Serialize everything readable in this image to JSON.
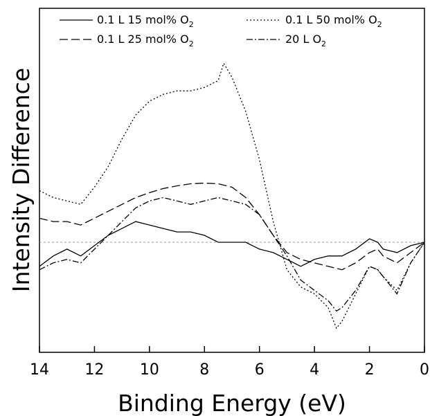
{
  "chart_data": {
    "type": "line",
    "xlabel": "Binding Energy (eV)",
    "ylabel": "Intensity Difference",
    "xlim": [
      14,
      0
    ],
    "x_reversed": true,
    "ylim": [
      -1.6,
      3.4
    ],
    "xticks": [
      14,
      12,
      10,
      8,
      6,
      4,
      2,
      0
    ],
    "yticks_shown": false,
    "grid": false,
    "legend": "top, two columns",
    "baseline": {
      "y": 0,
      "style": "thin dashed gray"
    },
    "series": [
      {
        "name": "0.1 L 15 mol% O",
        "name_subscript": "2",
        "line_style": "solid",
        "x": [
          14,
          13.5,
          13,
          12.5,
          12,
          11.5,
          11,
          10.5,
          10,
          9.5,
          9,
          8.5,
          8,
          7.5,
          7,
          6.5,
          6,
          5.5,
          5,
          4.5,
          4,
          3.5,
          3,
          2.5,
          2,
          1.7,
          1.5,
          1,
          0.5,
          0
        ],
        "y": [
          -0.35,
          -0.2,
          -0.1,
          -0.2,
          -0.05,
          0.1,
          0.2,
          0.3,
          0.25,
          0.2,
          0.15,
          0.15,
          0.1,
          0.0,
          0.0,
          0.0,
          -0.1,
          -0.15,
          -0.25,
          -0.35,
          -0.25,
          -0.2,
          -0.2,
          -0.1,
          0.05,
          0.0,
          -0.1,
          -0.15,
          -0.05,
          0.0
        ]
      },
      {
        "name": "0.1 L 25 mol% O",
        "name_subscript": "2",
        "line_style": "dashed",
        "x": [
          14,
          13.5,
          13,
          12.5,
          12,
          11.5,
          11,
          10.5,
          10,
          9.5,
          9,
          8.5,
          8,
          7.5,
          7,
          6.5,
          6,
          5.5,
          5,
          4.5,
          4,
          3.5,
          3,
          2.5,
          2,
          1.7,
          1.5,
          1,
          0.5,
          0
        ],
        "y": [
          0.35,
          0.3,
          0.3,
          0.25,
          0.35,
          0.45,
          0.55,
          0.65,
          0.72,
          0.78,
          0.82,
          0.85,
          0.86,
          0.85,
          0.8,
          0.65,
          0.4,
          0.1,
          -0.15,
          -0.25,
          -0.3,
          -0.35,
          -0.4,
          -0.3,
          -0.15,
          -0.1,
          -0.2,
          -0.3,
          -0.15,
          0.0
        ]
      },
      {
        "name": "0.1 L 50 mol% O",
        "name_subscript": "2",
        "line_style": "dotted",
        "x": [
          14,
          13.5,
          13,
          12.5,
          12,
          11.5,
          11,
          10.5,
          10,
          9.5,
          9,
          8.5,
          8,
          7.5,
          7.3,
          7,
          6.5,
          6,
          5.5,
          5,
          4.5,
          4,
          3.5,
          3.2,
          3,
          2.5,
          2,
          1.7,
          1.5,
          1,
          0.5,
          0
        ],
        "y": [
          0.75,
          0.65,
          0.6,
          0.55,
          0.8,
          1.1,
          1.5,
          1.85,
          2.05,
          2.15,
          2.2,
          2.2,
          2.25,
          2.35,
          2.6,
          2.4,
          1.9,
          1.2,
          0.3,
          -0.4,
          -0.65,
          -0.75,
          -0.95,
          -1.25,
          -1.15,
          -0.75,
          -0.35,
          -0.4,
          -0.5,
          -0.7,
          -0.3,
          0.0
        ]
      },
      {
        "name": "20 L O",
        "name_subscript": "2",
        "line_style": "dash-dot",
        "x": [
          14,
          13.5,
          13,
          12.5,
          12,
          11.5,
          11,
          10.5,
          10,
          9.5,
          9,
          8.5,
          8,
          7.5,
          7,
          6.5,
          6,
          5.5,
          5,
          4.5,
          4,
          3.5,
          3.2,
          3,
          2.5,
          2,
          1.7,
          1.5,
          1,
          0.5,
          0
        ],
        "y": [
          -0.4,
          -0.3,
          -0.25,
          -0.3,
          -0.1,
          0.1,
          0.3,
          0.5,
          0.6,
          0.65,
          0.6,
          0.55,
          0.6,
          0.65,
          0.6,
          0.55,
          0.4,
          0.1,
          -0.2,
          -0.55,
          -0.7,
          -0.85,
          -1.0,
          -0.95,
          -0.7,
          -0.35,
          -0.4,
          -0.5,
          -0.75,
          -0.3,
          0.0
        ]
      }
    ]
  }
}
